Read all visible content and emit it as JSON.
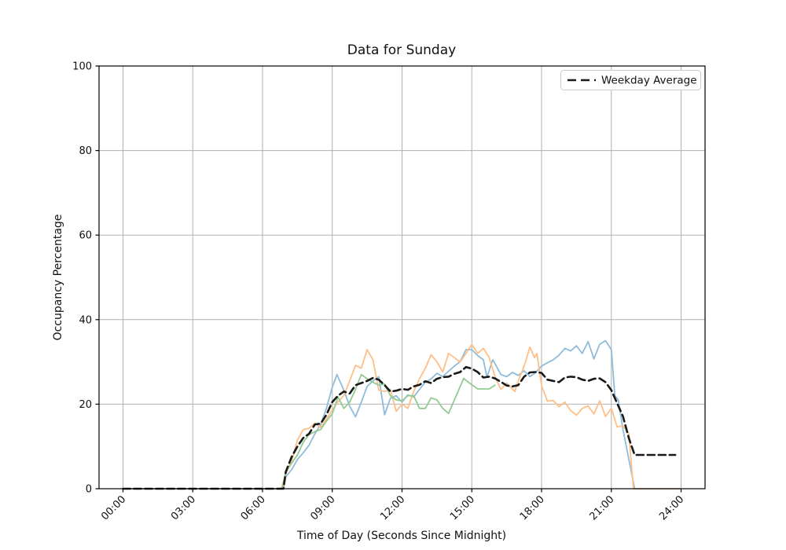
{
  "figure": {
    "background": "#ffffff",
    "title": "Data for Sunday",
    "xlabel": "Time of Day (Seconds Since Midnight)",
    "ylabel": "Occupancy Percentage"
  },
  "legend": {
    "label": "Weekday Average",
    "position": "upper right",
    "border_color": "#cccccc",
    "background": "#ffffff"
  },
  "colors": {
    "grid": "#b0b0b0",
    "spine": "#000000",
    "weekday_average": "#1a1a1a",
    "sunday_1": "#8fbcdb",
    "sunday_2": "#ffbf87",
    "sunday_3": "#92cb92"
  },
  "chart_data": {
    "type": "line",
    "title": "Data for Sunday",
    "xlabel": "Time of Day (Seconds Since Midnight)",
    "ylabel": "Occupancy Percentage",
    "grid": true,
    "legend_position": "upper right",
    "xlim_hours": [
      -1.03,
      25.03
    ],
    "ylim": [
      0,
      100
    ],
    "x_tick_hours": [
      0,
      3,
      6,
      9,
      12,
      15,
      18,
      21,
      24
    ],
    "x_tick_labels": [
      "00:00",
      "03:00",
      "06:00",
      "09:00",
      "12:00",
      "15:00",
      "18:00",
      "21:00",
      "24:00"
    ],
    "y_ticks": [
      0,
      20,
      40,
      60,
      80,
      100
    ],
    "series": [
      {
        "name": "sunday-1",
        "color": "#8fbcdb",
        "style": "solid",
        "width": 1.8,
        "in_legend": false,
        "points": [
          [
            0,
            0
          ],
          [
            1,
            0
          ],
          [
            2,
            0
          ],
          [
            3,
            0
          ],
          [
            4,
            0
          ],
          [
            5,
            0
          ],
          [
            6,
            0
          ],
          [
            6.5,
            0
          ],
          [
            6.9,
            0
          ],
          [
            7,
            2.8
          ],
          [
            7.25,
            4.5
          ],
          [
            7.5,
            6.9
          ],
          [
            7.75,
            8.5
          ],
          [
            8,
            10.3
          ],
          [
            8.25,
            13
          ],
          [
            8.5,
            15.2
          ],
          [
            8.75,
            19
          ],
          [
            9,
            24
          ],
          [
            9.2,
            27
          ],
          [
            9.5,
            23.3
          ],
          [
            9.75,
            19.5
          ],
          [
            10,
            17
          ],
          [
            10.25,
            20.5
          ],
          [
            10.5,
            24.2
          ],
          [
            10.75,
            25.5
          ],
          [
            11,
            26.5
          ],
          [
            11.25,
            17.5
          ],
          [
            11.5,
            21.4
          ],
          [
            11.75,
            22
          ],
          [
            12,
            20.5
          ],
          [
            12.25,
            22.2
          ],
          [
            12.5,
            21.7
          ],
          [
            12.75,
            23.5
          ],
          [
            13,
            25.2
          ],
          [
            13.25,
            26
          ],
          [
            13.5,
            27.3
          ],
          [
            13.75,
            26.5
          ],
          [
            14,
            27.8
          ],
          [
            14.25,
            29
          ],
          [
            14.5,
            30.1
          ],
          [
            14.75,
            32.9
          ],
          [
            15,
            32.9
          ],
          [
            15.25,
            31.5
          ],
          [
            15.5,
            30.5
          ],
          [
            15.65,
            26.4
          ],
          [
            15.9,
            30.5
          ],
          [
            16,
            29.6
          ],
          [
            16.25,
            27
          ],
          [
            16.5,
            26.5
          ],
          [
            16.75,
            27.5
          ],
          [
            17,
            26.8
          ],
          [
            17.25,
            27.9
          ],
          [
            17.5,
            26.5
          ],
          [
            17.75,
            27.5
          ],
          [
            18,
            29
          ],
          [
            18.25,
            29.8
          ],
          [
            18.5,
            30.5
          ],
          [
            18.75,
            31.6
          ],
          [
            19,
            33.2
          ],
          [
            19.25,
            32.6
          ],
          [
            19.5,
            33.8
          ],
          [
            19.75,
            32
          ],
          [
            20,
            34.8
          ],
          [
            20.25,
            30.7
          ],
          [
            20.5,
            34.2
          ],
          [
            20.75,
            35
          ],
          [
            21,
            32.9
          ],
          [
            21.15,
            22
          ],
          [
            21.3,
            21
          ],
          [
            21.5,
            14
          ],
          [
            21.75,
            7
          ],
          [
            22,
            0
          ],
          [
            22.5,
            0
          ],
          [
            23,
            0
          ],
          [
            23.5,
            0
          ],
          [
            24,
            0
          ]
        ]
      },
      {
        "name": "sunday-2",
        "color": "#ffbf87",
        "style": "solid",
        "width": 1.8,
        "in_legend": false,
        "points": [
          [
            0,
            0
          ],
          [
            1,
            0
          ],
          [
            2,
            0
          ],
          [
            3,
            0
          ],
          [
            4,
            0
          ],
          [
            5,
            0
          ],
          [
            6,
            0
          ],
          [
            6.5,
            0
          ],
          [
            6.8,
            0
          ],
          [
            7,
            3.5
          ],
          [
            7.25,
            6.5
          ],
          [
            7.5,
            11.5
          ],
          [
            7.75,
            14
          ],
          [
            8,
            14.3
          ],
          [
            8.25,
            15.5
          ],
          [
            8.5,
            14.5
          ],
          [
            8.75,
            16.5
          ],
          [
            9,
            18.6
          ],
          [
            9.25,
            20.5
          ],
          [
            9.5,
            22.1
          ],
          [
            9.75,
            25.5
          ],
          [
            10,
            29.2
          ],
          [
            10.25,
            28.5
          ],
          [
            10.5,
            32.9
          ],
          [
            10.75,
            30.5
          ],
          [
            11,
            23.3
          ],
          [
            11.25,
            23
          ],
          [
            11.5,
            23.5
          ],
          [
            11.75,
            18.3
          ],
          [
            12,
            20
          ],
          [
            12.25,
            19
          ],
          [
            12.5,
            23
          ],
          [
            12.75,
            26
          ],
          [
            13,
            28.5
          ],
          [
            13.25,
            31.7
          ],
          [
            13.5,
            30
          ],
          [
            13.75,
            27.6
          ],
          [
            14,
            32
          ],
          [
            14.25,
            31
          ],
          [
            14.5,
            30
          ],
          [
            14.75,
            32
          ],
          [
            15,
            34.1
          ],
          [
            15.25,
            32
          ],
          [
            15.5,
            33.2
          ],
          [
            15.75,
            31
          ],
          [
            16,
            26.5
          ],
          [
            16.25,
            23.5
          ],
          [
            16.5,
            25
          ],
          [
            16.85,
            23
          ],
          [
            17,
            25.5
          ],
          [
            17.25,
            29
          ],
          [
            17.5,
            33.5
          ],
          [
            17.7,
            31
          ],
          [
            17.8,
            32
          ],
          [
            18,
            24.4
          ],
          [
            18.25,
            20.7
          ],
          [
            18.5,
            20.9
          ],
          [
            18.75,
            19.4
          ],
          [
            19,
            20.5
          ],
          [
            19.25,
            18.5
          ],
          [
            19.5,
            17.4
          ],
          [
            19.75,
            19
          ],
          [
            20,
            19.6
          ],
          [
            20.25,
            17.7
          ],
          [
            20.5,
            20.8
          ],
          [
            20.75,
            17.1
          ],
          [
            21,
            19
          ],
          [
            21.25,
            14.6
          ],
          [
            21.5,
            14.9
          ],
          [
            21.75,
            13.1
          ],
          [
            21.95,
            0
          ],
          [
            22.5,
            0
          ],
          [
            23,
            0
          ],
          [
            23.5,
            0
          ],
          [
            24,
            0
          ]
        ]
      },
      {
        "name": "sunday-3",
        "color": "#92cb92",
        "style": "solid",
        "width": 1.8,
        "in_legend": false,
        "points": [
          [
            0,
            0
          ],
          [
            1,
            0
          ],
          [
            2,
            0
          ],
          [
            3,
            0
          ],
          [
            4,
            0
          ],
          [
            5,
            0
          ],
          [
            6,
            0
          ],
          [
            6.5,
            0
          ],
          [
            6.85,
            0
          ],
          [
            7,
            4
          ],
          [
            7.25,
            6
          ],
          [
            7.5,
            8
          ],
          [
            7.75,
            11
          ],
          [
            8,
            12.8
          ],
          [
            8.25,
            13.5
          ],
          [
            8.5,
            14
          ],
          [
            8.75,
            16
          ],
          [
            9,
            17.7
          ],
          [
            9.25,
            21.7
          ],
          [
            9.5,
            19
          ],
          [
            9.75,
            20.5
          ],
          [
            10,
            23.5
          ],
          [
            10.25,
            27
          ],
          [
            10.5,
            26
          ],
          [
            10.75,
            25.2
          ],
          [
            11,
            24.5
          ],
          [
            11.25,
            24.8
          ],
          [
            11.5,
            22
          ],
          [
            11.75,
            21
          ],
          [
            12,
            20.8
          ],
          [
            12.25,
            22
          ],
          [
            12.5,
            22
          ],
          [
            12.75,
            19
          ],
          [
            13,
            19
          ],
          [
            13.25,
            21.5
          ],
          [
            13.5,
            21
          ],
          [
            13.75,
            19
          ],
          [
            14,
            17.8
          ],
          [
            14.25,
            21
          ],
          [
            14.65,
            26.1
          ],
          [
            14.9,
            25
          ],
          [
            15.25,
            23.6
          ],
          [
            15.75,
            23.6
          ],
          [
            16,
            24.5
          ]
        ]
      },
      {
        "name": "weekday-average",
        "color": "#1a1a1a",
        "style": "dashed",
        "width": 2.6,
        "in_legend": true,
        "points": [
          [
            0,
            0
          ],
          [
            1,
            0
          ],
          [
            2,
            0
          ],
          [
            3,
            0
          ],
          [
            4,
            0
          ],
          [
            5,
            0
          ],
          [
            6,
            0
          ],
          [
            6.5,
            0
          ],
          [
            6.9,
            0
          ],
          [
            7,
            4
          ],
          [
            7.25,
            7.5
          ],
          [
            7.5,
            10
          ],
          [
            7.75,
            12
          ],
          [
            8,
            13
          ],
          [
            8.25,
            15.2
          ],
          [
            8.5,
            15.4
          ],
          [
            8.75,
            17.5
          ],
          [
            9,
            20.5
          ],
          [
            9.25,
            22
          ],
          [
            9.5,
            23
          ],
          [
            9.75,
            22.5
          ],
          [
            10,
            24.5
          ],
          [
            10.25,
            25
          ],
          [
            10.5,
            25.5
          ],
          [
            10.75,
            26.2
          ],
          [
            11,
            25.8
          ],
          [
            11.25,
            24.5
          ],
          [
            11.5,
            23
          ],
          [
            11.75,
            23.2
          ],
          [
            12,
            23.6
          ],
          [
            12.25,
            23.4
          ],
          [
            12.5,
            24.2
          ],
          [
            12.75,
            24.6
          ],
          [
            13,
            25.4
          ],
          [
            13.25,
            25
          ],
          [
            13.5,
            26
          ],
          [
            13.75,
            26.4
          ],
          [
            14,
            26.5
          ],
          [
            14.25,
            27.2
          ],
          [
            14.5,
            27.6
          ],
          [
            14.75,
            28.8
          ],
          [
            15,
            28.4
          ],
          [
            15.25,
            27.6
          ],
          [
            15.5,
            26.3
          ],
          [
            15.75,
            26.5
          ],
          [
            16,
            26.1
          ],
          [
            16.25,
            25.3
          ],
          [
            16.5,
            24.4
          ],
          [
            16.75,
            24.2
          ],
          [
            17,
            24.5
          ],
          [
            17.25,
            26.5
          ],
          [
            17.5,
            27.5
          ],
          [
            17.75,
            27.6
          ],
          [
            18,
            27.4
          ],
          [
            18.25,
            25.8
          ],
          [
            18.5,
            25.5
          ],
          [
            18.75,
            25.2
          ],
          [
            19,
            26.3
          ],
          [
            19.25,
            26.5
          ],
          [
            19.5,
            26.4
          ],
          [
            19.75,
            25.8
          ],
          [
            20,
            25.5
          ],
          [
            20.25,
            26
          ],
          [
            20.5,
            26.1
          ],
          [
            20.75,
            25.2
          ],
          [
            21,
            23.3
          ],
          [
            21.25,
            20.2
          ],
          [
            21.5,
            17.1
          ],
          [
            21.75,
            12
          ],
          [
            22,
            8
          ],
          [
            22.5,
            8
          ],
          [
            23,
            8
          ],
          [
            23.5,
            8
          ],
          [
            23.75,
            8
          ]
        ]
      }
    ]
  }
}
